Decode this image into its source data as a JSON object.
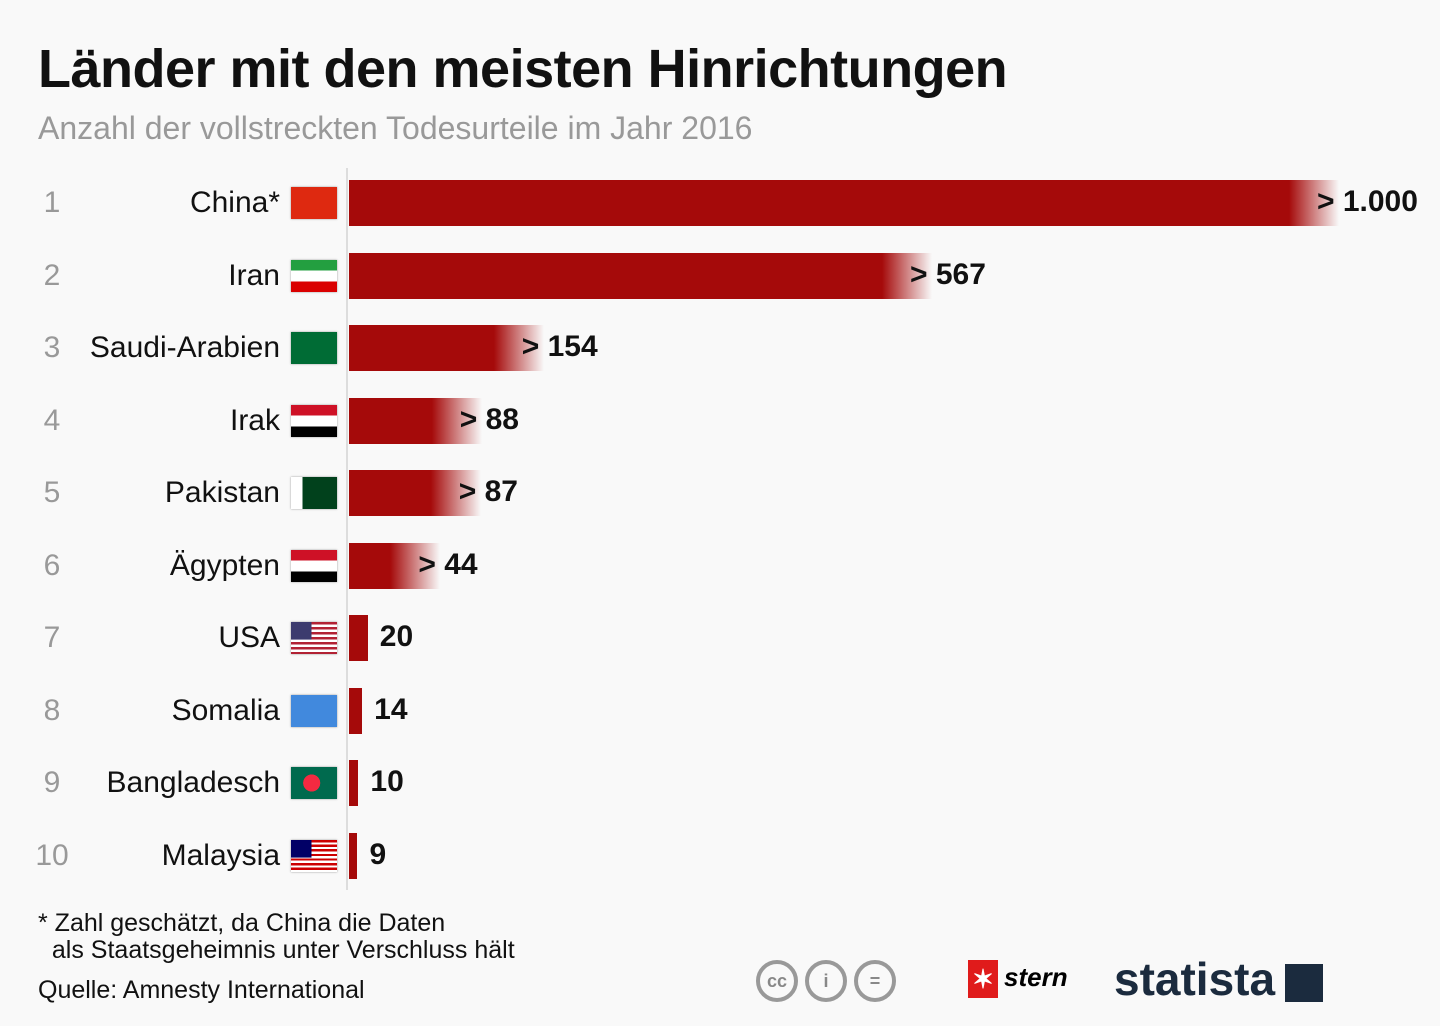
{
  "chart_data": {
    "type": "bar",
    "orientation": "horizontal",
    "title": "Länder mit den meisten Hinrichtungen",
    "subtitle": "Anzahl der vollstreckten Todesurteile im Jahr 2016",
    "ranks": [
      "1",
      "2",
      "3",
      "4",
      "5",
      "6",
      "7",
      "8",
      "9",
      "10"
    ],
    "categories": [
      "China*",
      "Iran",
      "Saudi-Arabien",
      "Irak",
      "Pakistan",
      "Ägypten",
      "USA",
      "Somalia",
      "Bangladesch",
      "Malaysia"
    ],
    "values": [
      1000,
      567,
      154,
      88,
      87,
      44,
      20,
      14,
      10,
      9
    ],
    "labels": [
      "> 1.000",
      "> 567",
      "> 154",
      "> 88",
      "> 87",
      "> 44",
      "20",
      "14",
      "10",
      "9"
    ],
    "minimum": [
      true,
      true,
      true,
      true,
      true,
      true,
      false,
      false,
      false,
      false
    ],
    "bar_color": "#a50a0a"
  },
  "footnote": "* Zahl geschätzt, da China die Daten\n  als Staatsgeheimnis unter Verschluss hält",
  "source": "Quelle: Amnesty International",
  "logos": {
    "stern": "stern",
    "statista": "statista",
    "license": "CC BY-ND"
  }
}
